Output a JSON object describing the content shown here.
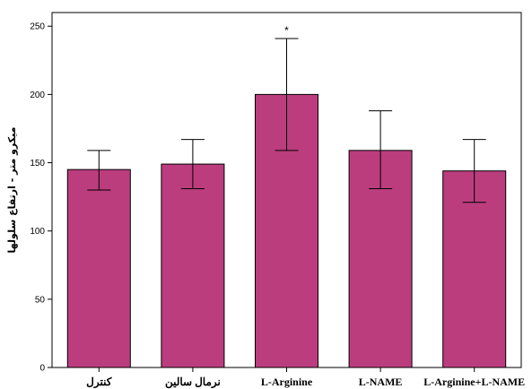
{
  "chart_data": {
    "type": "bar",
    "categories": [
      "کنترل",
      "نرمال سالین",
      "L-Arginine",
      "L-NAME",
      "L-Arginine+L-NAME"
    ],
    "values": [
      145,
      149,
      200,
      159,
      144
    ],
    "error_low": [
      130,
      131,
      159,
      131,
      121
    ],
    "error_high": [
      159,
      167,
      241,
      188,
      167
    ],
    "annotations": [
      "",
      "",
      "*",
      "",
      ""
    ],
    "ylabel": "میکرو متر - ارتفاع سلولها",
    "xlabel": "",
    "ylim": [
      0,
      260
    ],
    "yticks": [
      0,
      50,
      100,
      150,
      200,
      250
    ],
    "grid": false,
    "colors": {
      "bar_fill": "#bb3d7e",
      "bar_stroke": "#000000",
      "frame": "#000000",
      "background": "#ffffff"
    }
  }
}
